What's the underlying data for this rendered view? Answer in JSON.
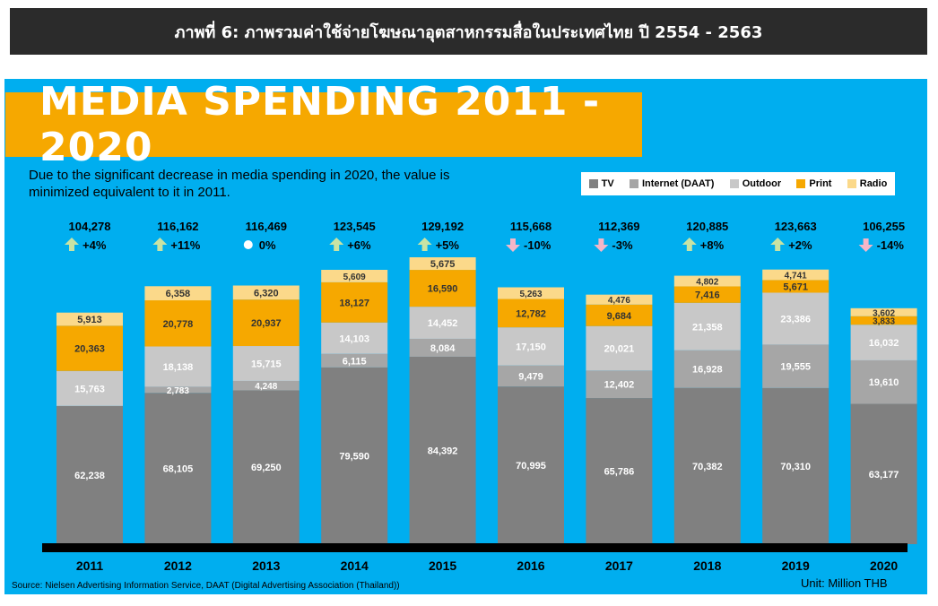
{
  "caption": "ภาพที่ 6: ภาพรวมค่าใช้จ่ายโฆษณาอุตสาหกรรมสื่อในประเทศไทย ปี 2554 - 2563",
  "note_line1": "Due to the significant decrease in media spending in 2020, the value is",
  "note_line2": "minimized equivalent to it in 2011.",
  "source": "Source: Nielsen Advertising Information Service, DAAT (Digital Advertising Association (Thailand))",
  "unit": "Unit: Million THB",
  "chart_data": {
    "type": "bar",
    "stacked": true,
    "title": "MEDIA SPENDING 2011 - 2020",
    "categories": [
      "2011",
      "2012",
      "2013",
      "2014",
      "2015",
      "2016",
      "2017",
      "2018",
      "2019",
      "2020"
    ],
    "series": [
      {
        "name": "TV",
        "color": "#808080",
        "values": [
          62238,
          68105,
          69250,
          79590,
          84392,
          70995,
          65786,
          70382,
          70310,
          63177
        ]
      },
      {
        "name": "Internet (DAAT)",
        "color": "#a6a6a6",
        "values": [
          null,
          2783,
          4248,
          6115,
          8084,
          9479,
          12402,
          16928,
          19555,
          19610
        ]
      },
      {
        "name": "Outdoor",
        "color": "#c8c8c8",
        "values": [
          15763,
          18138,
          15715,
          14103,
          14452,
          17150,
          20021,
          21358,
          23386,
          16032
        ]
      },
      {
        "name": "Print",
        "color": "#f6a800",
        "values": [
          20363,
          20778,
          20937,
          18127,
          16590,
          12782,
          9684,
          7416,
          5671,
          3833
        ]
      },
      {
        "name": "Radio",
        "color": "#fbd98a",
        "values": [
          5913,
          6358,
          6320,
          5609,
          5675,
          5263,
          4476,
          4802,
          4741,
          3602
        ]
      }
    ],
    "totals": [
      "104,278",
      "116,162",
      "116,469",
      "123,545",
      "129,192",
      "115,668",
      "112,369",
      "120,885",
      "123,663",
      "106,255"
    ],
    "changes": [
      {
        "label": "+4%",
        "dir": "up"
      },
      {
        "label": "+11%",
        "dir": "up"
      },
      {
        "label": "0%",
        "dir": "flat"
      },
      {
        "label": "+6%",
        "dir": "up"
      },
      {
        "label": "+5%",
        "dir": "up"
      },
      {
        "label": "-10%",
        "dir": "down"
      },
      {
        "label": "-3%",
        "dir": "down"
      },
      {
        "label": "+8%",
        "dir": "up"
      },
      {
        "label": "+2%",
        "dir": "up"
      },
      {
        "label": "-14%",
        "dir": "down"
      }
    ],
    "colors": {
      "up": "#c9e3a4",
      "down": "#f4b6c8",
      "flat": "#ffffff"
    }
  }
}
